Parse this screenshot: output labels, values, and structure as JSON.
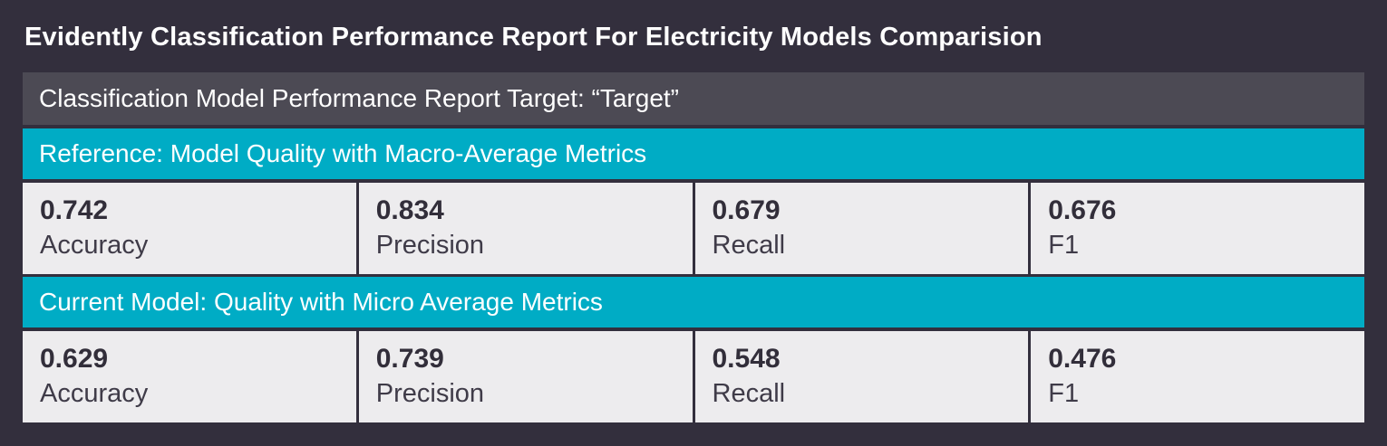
{
  "title": "Evidently Classification Performance Report For Electricity Models Comparision",
  "target_header": {
    "text": "Classification Model Performance Report Target: “Target”"
  },
  "sections": [
    {
      "header": "Reference: Model Quality with Macro-Average Metrics",
      "metrics": [
        {
          "value": "0.742",
          "label": "Accuracy"
        },
        {
          "value": "0.834",
          "label": "Precision"
        },
        {
          "value": "0.679",
          "label": "Recall"
        },
        {
          "value": "0.676",
          "label": "F1"
        }
      ]
    },
    {
      "header": "Current Model: Quality with Micro Average Metrics",
      "metrics": [
        {
          "value": "0.629",
          "label": "Accuracy"
        },
        {
          "value": "0.739",
          "label": "Precision"
        },
        {
          "value": "0.548",
          "label": "Recall"
        },
        {
          "value": "0.476",
          "label": "F1"
        }
      ]
    }
  ],
  "colors": {
    "page_bg": "#332F3D",
    "header_bg": "#4C4A54",
    "accent": "#00ACC5",
    "card_bg": "#EDECEE",
    "value_text": "#322E3A",
    "label_text": "#3F3B48",
    "title_text": "#FFFFFF"
  }
}
